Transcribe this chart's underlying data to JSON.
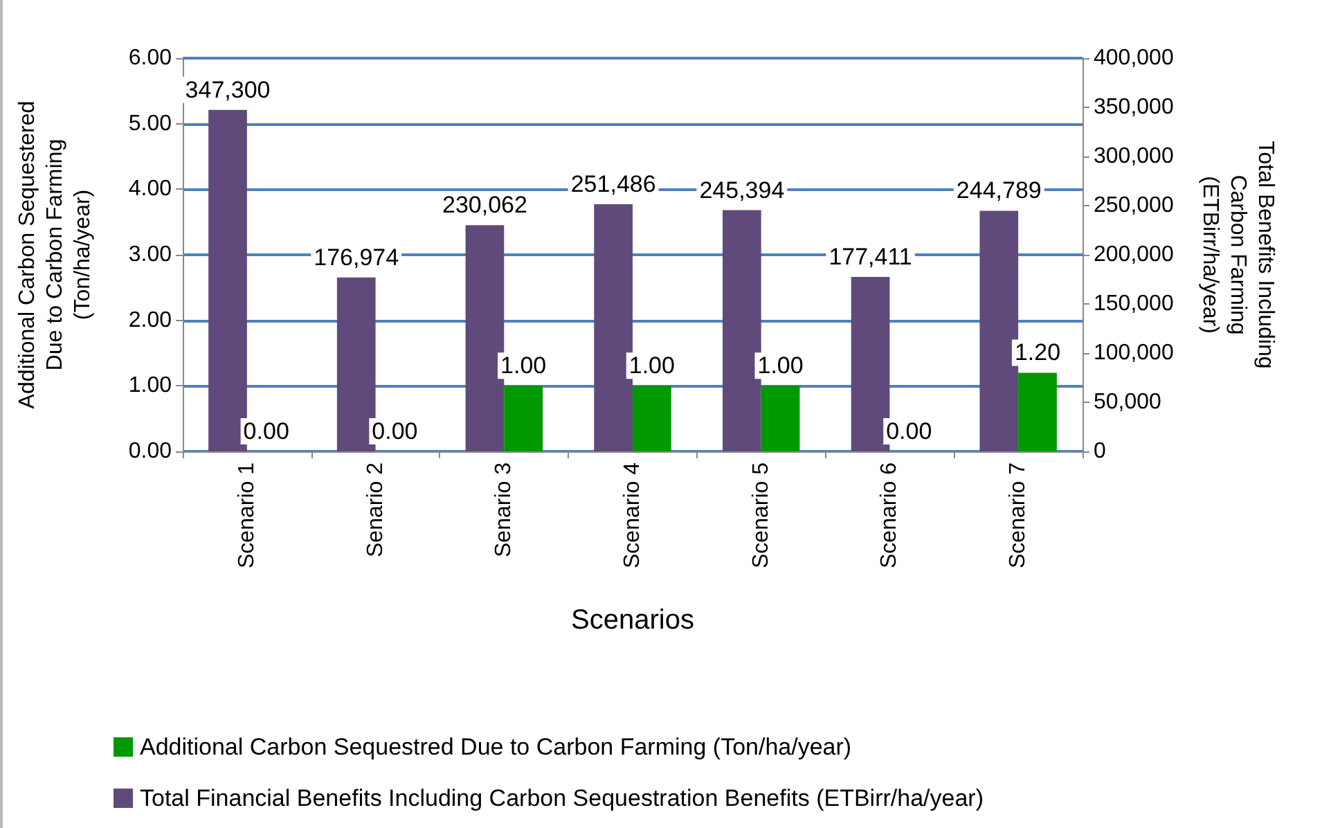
{
  "chart_data": {
    "type": "bar",
    "xlabel": "Scenarios",
    "ylabel": "Additional Carbon Sequestered Due to Carbon Farming (Ton/ha/year)",
    "y2label": "Total Benefits Including Carbon Farming (ETBirr/ha/year)",
    "categories": [
      "Scenario 1",
      "Senario 2",
      "Senario 3",
      "Scenario 4",
      "Scenario 5",
      "Scenario 6",
      "Scenario 7"
    ],
    "series": [
      {
        "name": "Total Financial Benefits Including Carbon Sequestration Benefits (ETBirr/ha/year)",
        "color": "#604a7b",
        "axis": "y2",
        "values": [
          347300,
          176974,
          230062,
          251486,
          245394,
          177411,
          244789
        ],
        "value_labels": [
          "347,300",
          "176,974",
          "230,062",
          "251,486",
          "245,394",
          "177,411",
          "244,789"
        ]
      },
      {
        "name": "Additional Carbon Sequestred Due to Carbon Farming (Ton/ha/year)",
        "color": "#009900",
        "values": [
          0,
          0,
          1,
          1,
          1,
          0,
          1.2
        ],
        "value_labels": [
          "0.00",
          "0.00",
          "1.00",
          "1.00",
          "1.00",
          "0.00",
          "1.20"
        ]
      }
    ],
    "ylim": [
      0,
      6
    ],
    "yticks": [
      {
        "value": 0,
        "label": "0.00"
      },
      {
        "value": 1,
        "label": "1.00"
      },
      {
        "value": 2,
        "label": "2.00"
      },
      {
        "value": 3,
        "label": "3.00"
      },
      {
        "value": 4,
        "label": "4.00"
      },
      {
        "value": 5,
        "label": "5.00"
      },
      {
        "value": 6,
        "label": "6.00"
      }
    ],
    "y2lim": [
      0,
      400000
    ],
    "y2ticks": [
      0,
      {
        "value": 50000,
        "label": "50,000"
      },
      {
        "value": 100000,
        "label": "100,000"
      },
      {
        "value": 150000,
        "label": "150,000"
      },
      {
        "value": 200000,
        "label": "200,000"
      },
      {
        "value": 250000,
        "label": "250,000"
      },
      {
        "value": 300000,
        "label": "300,000"
      },
      {
        "value": 350000,
        "label": "350,000"
      },
      {
        "value": 400000,
        "label": "400,000"
      }
    ],
    "grid": "y",
    "legend": "bottom"
  }
}
